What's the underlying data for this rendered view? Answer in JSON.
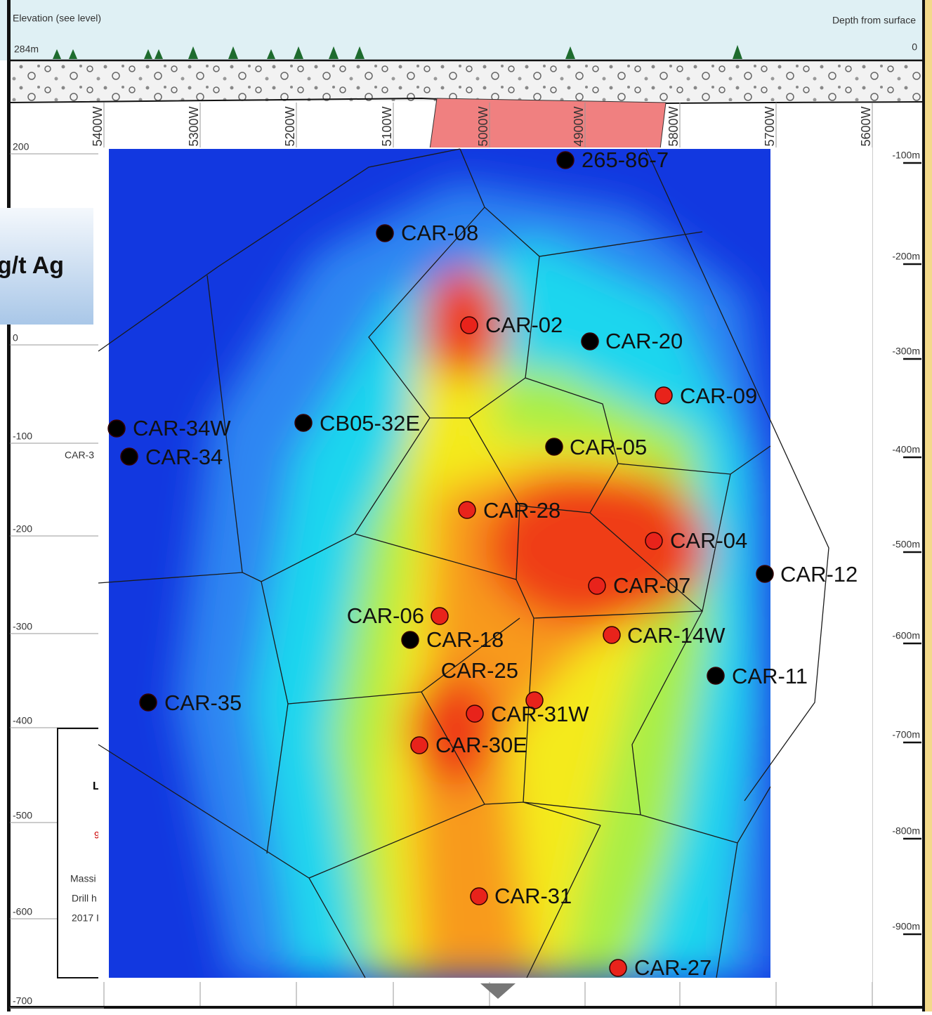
{
  "header": {
    "left": "Elevation (see level)",
    "right": "Depth from surface",
    "elevation_top": "284m",
    "depth_top": "0"
  },
  "sections": [
    "5400W",
    "5300W",
    "5200W",
    "5100W",
    "5000W",
    "4900W",
    "5800W",
    "5700W",
    "5600W"
  ],
  "elevation_ticks": [
    "200",
    "0",
    "-100",
    "-200",
    "-300",
    "-400",
    "-500",
    "-600",
    "-700"
  ],
  "depth_ticks": [
    "-100m",
    "-200m",
    "-300m",
    "-400m",
    "-500m",
    "-600m",
    "-700m",
    "-800m",
    "-900m"
  ],
  "legend": {
    "title": "g/t Ag"
  },
  "side_note": "CAR-3",
  "lower_box": {
    "heading": "L",
    "mark": "9",
    "lines": [
      "Massi",
      "Drill h",
      "2017 I"
    ]
  },
  "holes": [
    {
      "label": "265-86-7",
      "color": "#000000"
    },
    {
      "label": "CAR-08",
      "color": "#000000"
    },
    {
      "label": "CAR-02",
      "color": "#e8231b"
    },
    {
      "label": "CAR-20",
      "color": "#000000"
    },
    {
      "label": "CAR-09",
      "color": "#e8231b"
    },
    {
      "label": "CB05-32E",
      "color": "#000000"
    },
    {
      "label": "CAR-34W",
      "color": "#000000"
    },
    {
      "label": "CAR-34",
      "color": "#000000"
    },
    {
      "label": "CAR-05",
      "color": "#000000"
    },
    {
      "label": "CAR-28",
      "color": "#e8231b"
    },
    {
      "label": "CAR-04",
      "color": "#e8231b"
    },
    {
      "label": "CAR-12",
      "color": "#000000"
    },
    {
      "label": "CAR-07",
      "color": "#e8231b"
    },
    {
      "label": "CAR-06",
      "color": "#e8231b"
    },
    {
      "label": "CAR-18",
      "color": "#000000"
    },
    {
      "label": "CAR-25",
      "color": "#e8231b"
    },
    {
      "label": "CAR-31W",
      "color": "#e8231b"
    },
    {
      "label": "CAR-14W",
      "color": "#e8231b"
    },
    {
      "label": "CAR-11",
      "color": "#000000"
    },
    {
      "label": "CAR-35",
      "color": "#000000"
    },
    {
      "label": "CAR-30E",
      "color": "#e8231b"
    },
    {
      "label": "CAR-31",
      "color": "#e8231b"
    },
    {
      "label": "CAR-27",
      "color": "#e8231b"
    }
  ]
}
